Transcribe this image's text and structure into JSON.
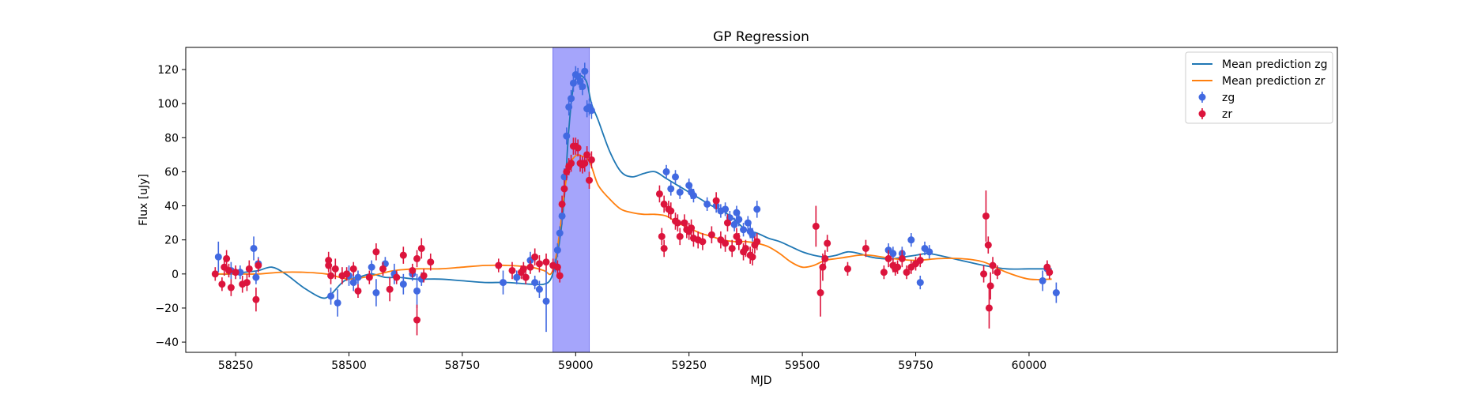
{
  "chart_data": {
    "type": "scatter",
    "title": "GP Regression",
    "xlabel": "MJD",
    "ylabel": "Flux [uJy]",
    "xlim": [
      58140,
      60680
    ],
    "ylim": [
      -46,
      133
    ],
    "xticks": [
      58250,
      58500,
      58750,
      59000,
      59250,
      59500,
      59750,
      60000
    ],
    "yticks": [
      -40,
      -20,
      0,
      20,
      40,
      60,
      80,
      100,
      120
    ],
    "grid": false,
    "legend_position": "top-right",
    "highlight_region": {
      "x_start": 58950,
      "x_end": 59030,
      "color": "#a5a5fb"
    },
    "series": [
      {
        "name": "Mean prediction zg",
        "kind": "line",
        "color": "#1f77b4",
        "x": [
          58210,
          58240,
          58270,
          58300,
          58330,
          58360,
          58400,
          58440,
          58460,
          58490,
          58520,
          58550,
          58580,
          58610,
          58650,
          58700,
          58750,
          58800,
          58850,
          58900,
          58930,
          58945,
          58955,
          58965,
          58975,
          58985,
          58995,
          59005,
          59015,
          59025,
          59035,
          59050,
          59075,
          59100,
          59125,
          59150,
          59175,
          59200,
          59225,
          59250,
          59275,
          59300,
          59325,
          59350,
          59375,
          59400,
          59425,
          59450,
          59475,
          59500,
          59525,
          59550,
          59575,
          59600,
          59625,
          59650,
          59675,
          59700,
          59725,
          59750,
          59775,
          59800,
          59850,
          59900,
          59950,
          60000,
          60050
        ],
        "y": [
          0,
          0,
          1,
          2,
          4,
          0,
          -8,
          -14,
          -12,
          -4,
          -2,
          0,
          -2,
          -2,
          -3,
          -3,
          -4,
          -5,
          -5,
          -6,
          -6,
          -3,
          6,
          20,
          45,
          85,
          110,
          116,
          116,
          112,
          100,
          90,
          72,
          60,
          57,
          59,
          60,
          56,
          52,
          48,
          44,
          40,
          37,
          32,
          26,
          24,
          21,
          19,
          16,
          13,
          11,
          10,
          11,
          13,
          12,
          10,
          9,
          9,
          10,
          11,
          12,
          11,
          8,
          5,
          3,
          3,
          3
        ]
      },
      {
        "name": "Mean prediction zr",
        "kind": "line",
        "color": "#ff7f0e",
        "x": [
          58210,
          58250,
          58300,
          58350,
          58400,
          58450,
          58500,
          58550,
          58600,
          58650,
          58700,
          58750,
          58800,
          58850,
          58900,
          58930,
          58945,
          58955,
          58965,
          58975,
          58985,
          58995,
          59005,
          59015,
          59025,
          59035,
          59050,
          59075,
          59100,
          59125,
          59150,
          59175,
          59200,
          59225,
          59250,
          59275,
          59300,
          59325,
          59350,
          59375,
          59400,
          59425,
          59450,
          59475,
          59500,
          59525,
          59550,
          59575,
          59600,
          59625,
          59650,
          59700,
          59750,
          59800,
          59850,
          59900,
          59950,
          60000,
          60050
        ],
        "y": [
          0,
          0,
          0,
          1,
          1,
          0,
          -3,
          -1,
          2,
          3,
          3,
          4,
          5,
          5,
          4,
          2,
          0,
          8,
          25,
          48,
          63,
          68,
          70,
          69,
          68,
          63,
          52,
          44,
          38,
          36,
          35,
          35,
          34,
          30,
          27,
          24,
          22,
          20,
          19,
          19,
          18,
          16,
          12,
          7,
          4,
          5,
          8,
          9,
          10,
          11,
          11,
          9,
          8,
          9,
          9,
          7,
          1,
          -3,
          -3
        ]
      },
      {
        "name": "zg",
        "kind": "errorbar",
        "color": "#4169e1",
        "points": [
          [
            58212,
            10,
            9
          ],
          [
            58240,
            2,
            5
          ],
          [
            58260,
            1,
            4
          ],
          [
            58290,
            15,
            7
          ],
          [
            58295,
            -2,
            4
          ],
          [
            58300,
            6,
            4
          ],
          [
            58460,
            -13,
            5
          ],
          [
            58475,
            -17,
            8
          ],
          [
            58500,
            -1,
            6
          ],
          [
            58510,
            -5,
            5
          ],
          [
            58520,
            -2,
            4
          ],
          [
            58550,
            4,
            4
          ],
          [
            58560,
            -11,
            8
          ],
          [
            58580,
            6,
            4
          ],
          [
            58600,
            0,
            6
          ],
          [
            58620,
            -6,
            6
          ],
          [
            58640,
            0,
            4
          ],
          [
            58650,
            -10,
            10
          ],
          [
            58660,
            -3,
            4
          ],
          [
            58840,
            -5,
            7
          ],
          [
            58870,
            -2,
            4
          ],
          [
            58890,
            -2,
            4
          ],
          [
            58900,
            8,
            5
          ],
          [
            58910,
            -5,
            4
          ],
          [
            58920,
            -9,
            5
          ],
          [
            58935,
            -16,
            18
          ],
          [
            58955,
            5,
            4
          ],
          [
            58960,
            14,
            4
          ],
          [
            58965,
            24,
            4
          ],
          [
            58970,
            34,
            5
          ],
          [
            58975,
            57,
            5
          ],
          [
            58980,
            81,
            5
          ],
          [
            58985,
            98,
            5
          ],
          [
            58990,
            103,
            5
          ],
          [
            58995,
            112,
            5
          ],
          [
            59000,
            117,
            5
          ],
          [
            59005,
            116,
            5
          ],
          [
            59010,
            113,
            5
          ],
          [
            59015,
            110,
            5
          ],
          [
            59020,
            119,
            5
          ],
          [
            59025,
            97,
            5
          ],
          [
            59030,
            98,
            5
          ],
          [
            59035,
            96,
            5
          ],
          [
            59200,
            60,
            4
          ],
          [
            59210,
            50,
            4
          ],
          [
            59220,
            57,
            4
          ],
          [
            59230,
            48,
            4
          ],
          [
            59250,
            52,
            4
          ],
          [
            59255,
            48,
            4
          ],
          [
            59260,
            46,
            4
          ],
          [
            59290,
            41,
            4
          ],
          [
            59310,
            40,
            4
          ],
          [
            59320,
            37,
            4
          ],
          [
            59330,
            38,
            4
          ],
          [
            59340,
            33,
            4
          ],
          [
            59350,
            29,
            4
          ],
          [
            59355,
            36,
            4
          ],
          [
            59360,
            32,
            4
          ],
          [
            59370,
            26,
            4
          ],
          [
            59380,
            30,
            4
          ],
          [
            59385,
            25,
            4
          ],
          [
            59390,
            23,
            4
          ],
          [
            59400,
            38,
            5
          ],
          [
            59690,
            14,
            4
          ],
          [
            59700,
            12,
            4
          ],
          [
            59720,
            12,
            4
          ],
          [
            59740,
            20,
            4
          ],
          [
            59760,
            -5,
            4
          ],
          [
            59770,
            15,
            4
          ],
          [
            59780,
            13,
            4
          ],
          [
            60030,
            -4,
            6
          ],
          [
            60040,
            3,
            4
          ],
          [
            60060,
            -11,
            6
          ]
        ]
      },
      {
        "name": "zr",
        "kind": "errorbar",
        "color": "#dc143c",
        "points": [
          [
            58205,
            0,
            4
          ],
          [
            58220,
            -6,
            4
          ],
          [
            58225,
            4,
            5
          ],
          [
            58230,
            9,
            5
          ],
          [
            58235,
            2,
            4
          ],
          [
            58240,
            -8,
            5
          ],
          [
            58250,
            1,
            4
          ],
          [
            58265,
            -6,
            5
          ],
          [
            58275,
            -5,
            5
          ],
          [
            58280,
            3,
            5
          ],
          [
            58295,
            -15,
            7
          ],
          [
            58300,
            5,
            4
          ],
          [
            58455,
            8,
            5
          ],
          [
            58455,
            5,
            4
          ],
          [
            58460,
            -1,
            5
          ],
          [
            58470,
            3,
            6
          ],
          [
            58485,
            -1,
            5
          ],
          [
            58495,
            0,
            4
          ],
          [
            58510,
            3,
            4
          ],
          [
            58520,
            -10,
            4
          ],
          [
            58545,
            -2,
            4
          ],
          [
            58560,
            13,
            5
          ],
          [
            58575,
            3,
            4
          ],
          [
            58590,
            -9,
            7
          ],
          [
            58605,
            -2,
            4
          ],
          [
            58620,
            11,
            5
          ],
          [
            58640,
            2,
            4
          ],
          [
            58650,
            9,
            5
          ],
          [
            58650,
            -27,
            9
          ],
          [
            58660,
            15,
            6
          ],
          [
            58665,
            -1,
            4
          ],
          [
            58680,
            7,
            5
          ],
          [
            58830,
            5,
            4
          ],
          [
            58860,
            2,
            5
          ],
          [
            58880,
            1,
            4
          ],
          [
            58885,
            3,
            4
          ],
          [
            58890,
            -2,
            4
          ],
          [
            58900,
            4,
            4
          ],
          [
            58910,
            10,
            5
          ],
          [
            58920,
            6,
            5
          ],
          [
            58935,
            7,
            5
          ],
          [
            58950,
            5,
            4
          ],
          [
            58960,
            4,
            4
          ],
          [
            58965,
            -1,
            4
          ],
          [
            58970,
            41,
            5
          ],
          [
            58975,
            50,
            5
          ],
          [
            58980,
            60,
            5
          ],
          [
            58985,
            63,
            5
          ],
          [
            58990,
            65,
            5
          ],
          [
            58995,
            75,
            5
          ],
          [
            59000,
            75,
            5
          ],
          [
            59005,
            74,
            5
          ],
          [
            59010,
            65,
            5
          ],
          [
            59015,
            64,
            5
          ],
          [
            59020,
            65,
            5
          ],
          [
            59025,
            70,
            5
          ],
          [
            59030,
            55,
            5
          ],
          [
            59035,
            67,
            5
          ],
          [
            59185,
            47,
            5
          ],
          [
            59190,
            22,
            5
          ],
          [
            59195,
            15,
            5
          ],
          [
            59195,
            41,
            5
          ],
          [
            59205,
            38,
            5
          ],
          [
            59210,
            37,
            5
          ],
          [
            59220,
            31,
            5
          ],
          [
            59225,
            30,
            5
          ],
          [
            59230,
            22,
            5
          ],
          [
            59240,
            30,
            5
          ],
          [
            59245,
            26,
            5
          ],
          [
            59250,
            25,
            5
          ],
          [
            59255,
            27,
            5
          ],
          [
            59260,
            21,
            5
          ],
          [
            59270,
            20,
            5
          ],
          [
            59280,
            19,
            5
          ],
          [
            59300,
            23,
            5
          ],
          [
            59310,
            43,
            5
          ],
          [
            59320,
            20,
            5
          ],
          [
            59330,
            18,
            5
          ],
          [
            59335,
            30,
            5
          ],
          [
            59345,
            15,
            5
          ],
          [
            59355,
            22,
            5
          ],
          [
            59360,
            19,
            5
          ],
          [
            59370,
            13,
            5
          ],
          [
            59375,
            15,
            5
          ],
          [
            59385,
            11,
            5
          ],
          [
            59390,
            10,
            5
          ],
          [
            59395,
            17,
            5
          ],
          [
            59400,
            19,
            5
          ],
          [
            59530,
            28,
            12
          ],
          [
            59540,
            -11,
            14
          ],
          [
            59545,
            4,
            8
          ],
          [
            59550,
            9,
            5
          ],
          [
            59555,
            18,
            5
          ],
          [
            59600,
            3,
            4
          ],
          [
            59640,
            15,
            5
          ],
          [
            59680,
            1,
            4
          ],
          [
            59690,
            9,
            5
          ],
          [
            59700,
            5,
            4
          ],
          [
            59705,
            3,
            4
          ],
          [
            59710,
            4,
            4
          ],
          [
            59720,
            9,
            5
          ],
          [
            59730,
            1,
            4
          ],
          [
            59740,
            4,
            4
          ],
          [
            59750,
            6,
            4
          ],
          [
            59760,
            8,
            4
          ],
          [
            59900,
            0,
            5
          ],
          [
            59905,
            34,
            15
          ],
          [
            59910,
            17,
            5
          ],
          [
            59912,
            -20,
            12
          ],
          [
            59915,
            -7,
            8
          ],
          [
            59920,
            5,
            5
          ],
          [
            59930,
            1,
            4
          ],
          [
            60040,
            4,
            4
          ],
          [
            60045,
            1,
            4
          ]
        ]
      }
    ]
  }
}
